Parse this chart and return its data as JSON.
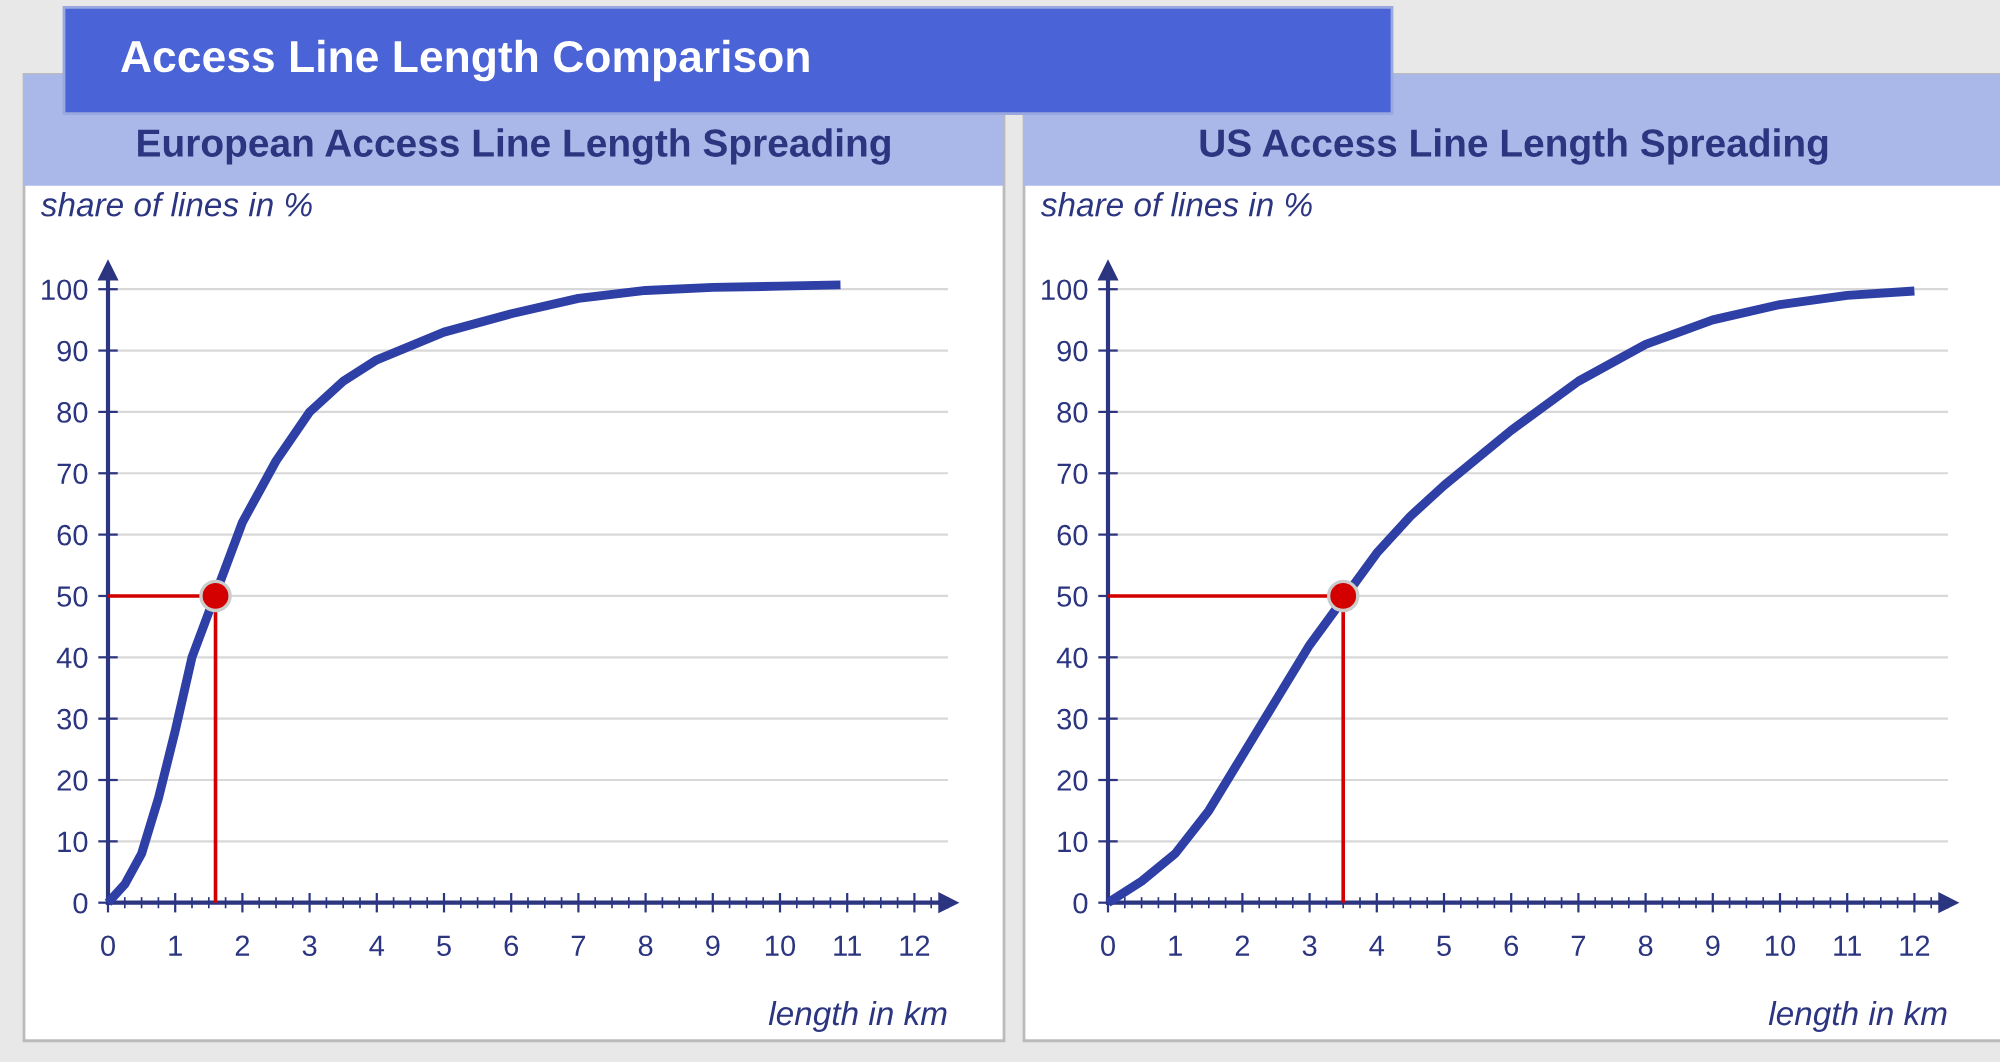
{
  "chart_data": [
    {
      "type": "line",
      "title": "European Access Line Length Spreading",
      "ylabel": "share of lines in %",
      "xlabel": "length in km",
      "annotations": [
        "Access Line Length Comparison"
      ],
      "xlim": [
        0,
        12.5
      ],
      "ylim": [
        0,
        103
      ],
      "xticks": [
        0,
        1,
        2,
        3,
        4,
        5,
        6,
        7,
        8,
        9,
        10,
        11,
        12
      ],
      "yticks": [
        0,
        10,
        20,
        30,
        40,
        50,
        60,
        70,
        80,
        90,
        100
      ],
      "grid": "y",
      "legend": false,
      "series": [
        {
          "color": "#2e3fa6",
          "x": [
            0,
            0.25,
            0.5,
            0.75,
            1,
            1.25,
            2,
            2.5,
            3,
            3.5,
            4,
            5,
            6,
            7,
            8,
            9,
            10,
            10.9
          ],
          "values": [
            0,
            3,
            8,
            17,
            28,
            40,
            62,
            72,
            80,
            85,
            88.5,
            93,
            96,
            98.5,
            99.8,
            100.3,
            100.5,
            100.7
          ]
        },
        {
          "type": "line",
          "color": "#d40000",
          "x": [
            0,
            1.6,
            1.6
          ],
          "values": [
            50,
            50,
            0
          ]
        },
        {
          "type": "scatter",
          "color": "#d40000",
          "x": [
            1.6
          ],
          "values": [
            50
          ]
        }
      ]
    },
    {
      "type": "line",
      "title": "US Access Line Length Spreading",
      "ylabel": "share of lines in %",
      "xlabel": "length in km",
      "xlim": [
        0,
        12.5
      ],
      "ylim": [
        0,
        103
      ],
      "xticks": [
        0,
        1,
        2,
        3,
        4,
        5,
        6,
        7,
        8,
        9,
        10,
        11,
        12
      ],
      "yticks": [
        0,
        10,
        20,
        30,
        40,
        50,
        60,
        70,
        80,
        90,
        100
      ],
      "grid": "y",
      "legend": false,
      "series": [
        {
          "color": "#2e3fa6",
          "x": [
            0,
            0.5,
            1,
            1.5,
            2,
            2.5,
            3,
            4,
            4.5,
            5,
            6,
            7,
            8,
            9,
            10,
            11,
            12
          ],
          "values": [
            0,
            3.5,
            8,
            15,
            24,
            33,
            42,
            57,
            63,
            68,
            77,
            85,
            91,
            95,
            97.5,
            99,
            99.7
          ]
        },
        {
          "type": "line",
          "color": "#d40000",
          "x": [
            0,
            3.5,
            3.5
          ],
          "values": [
            50,
            50,
            0
          ]
        },
        {
          "type": "scatter",
          "color": "#d40000",
          "x": [
            3.5
          ],
          "values": [
            50
          ]
        }
      ]
    }
  ]
}
